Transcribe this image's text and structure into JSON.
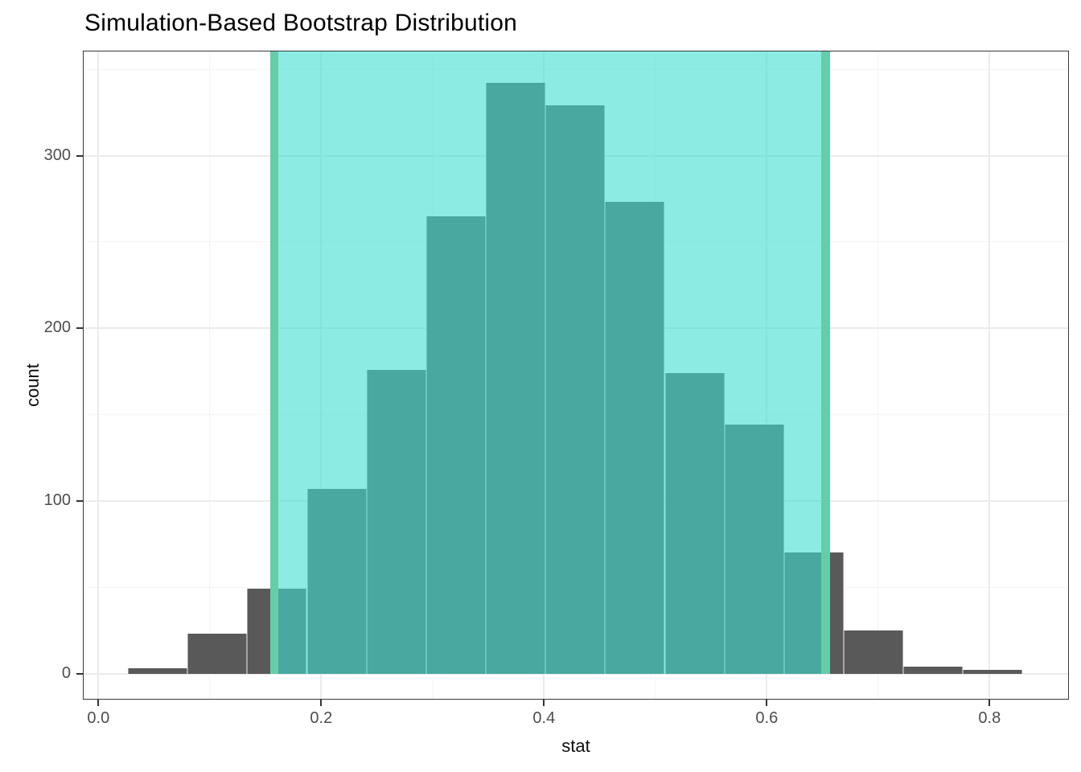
{
  "title": "Simulation-Based Bootstrap Distribution",
  "chart_data": {
    "type": "bar",
    "subtype": "histogram",
    "title": "Simulation-Based Bootstrap Distribution",
    "xlabel": "stat",
    "ylabel": "count",
    "grid": "major-minor",
    "legend": "none",
    "xlim": [
      -0.014,
      0.871
    ],
    "ylim_counts": [
      0,
      360
    ],
    "x_ticks": [
      {
        "value": 0.0,
        "label": "0.0"
      },
      {
        "value": 0.2,
        "label": "0.2"
      },
      {
        "value": 0.4,
        "label": "0.4"
      },
      {
        "value": 0.6,
        "label": "0.6"
      },
      {
        "value": 0.8,
        "label": "0.8"
      }
    ],
    "y_ticks": [
      {
        "value": 0,
        "label": "0"
      },
      {
        "value": 100,
        "label": "100"
      },
      {
        "value": 200,
        "label": "200"
      },
      {
        "value": 300,
        "label": "300"
      }
    ],
    "bins": {
      "start": 0.0265,
      "width": 0.05355,
      "counts": [
        3,
        23,
        49,
        107,
        176,
        265,
        342,
        329,
        273,
        174,
        144,
        70,
        25,
        4,
        2
      ]
    },
    "confidence_interval": {
      "lower": 0.158,
      "upper": 0.653
    },
    "colors": {
      "bar_fill": "#595959",
      "shade_fill_rgba": "rgba(64,224,208,0.6)",
      "ci_line": "#66CDAA",
      "grid_major": "#EBEBEB",
      "grid_minor": "#F4F4F4",
      "axis_text": "#4D4D4D",
      "axis_title": "#0d0d0d",
      "panel_border": "#383838",
      "background": "#FFFFFF"
    }
  }
}
